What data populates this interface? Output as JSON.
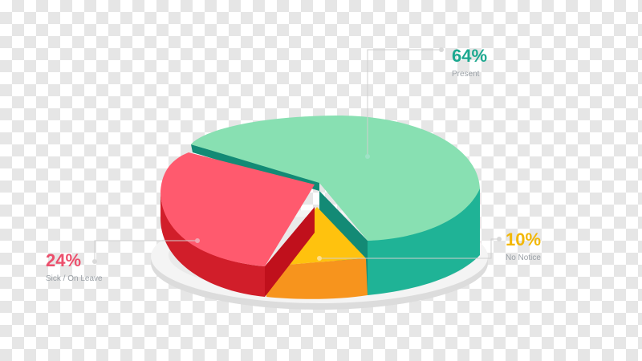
{
  "chart_data": {
    "type": "pie",
    "style": "3d-exploded",
    "title": "",
    "slices": [
      {
        "label": "Present",
        "value": 64,
        "display": "64%",
        "color": "#88e0b2",
        "side_color": "#1fb396",
        "cut_color": "#138a75"
      },
      {
        "label": "No Notice",
        "value": 10,
        "display": "10%",
        "color": "#ffc20e",
        "side_color": "#f7941d",
        "cut_color": "#f7941d"
      },
      {
        "label": "Sick / On Leave",
        "value": 24,
        "display": "24%",
        "color": "#ff5a6e",
        "side_color": "#d11e2a",
        "cut_color": "#c0101c"
      }
    ],
    "label_colors": {
      "present": "#1ba88f",
      "no_notice": "#f2b705",
      "sick": "#ec4f6c"
    },
    "base_color": "#f4f4f4",
    "background": "transparency-checkerboard"
  }
}
